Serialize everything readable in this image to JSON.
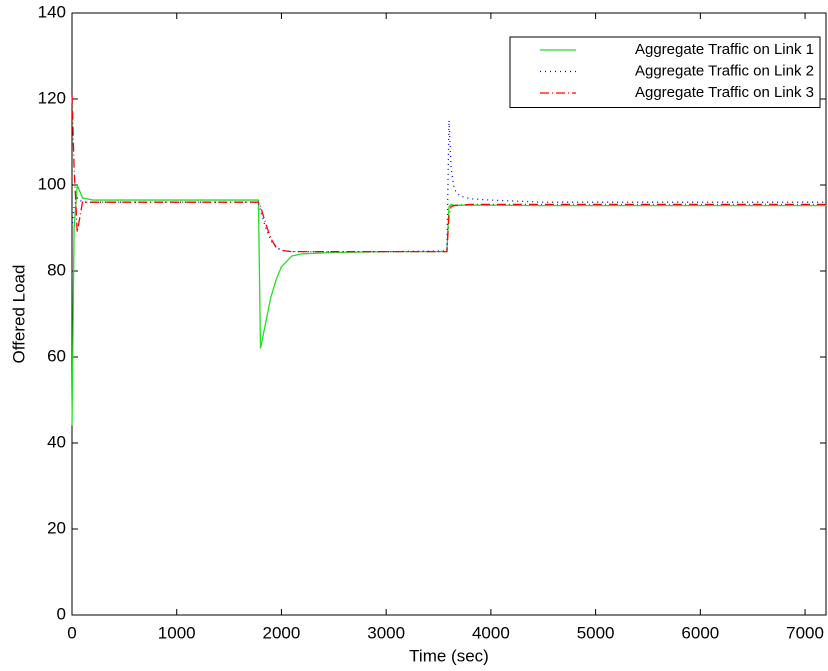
{
  "chart_data": {
    "type": "line",
    "xlabel": "Time (sec)",
    "ylabel": "Offered Load",
    "x": [
      0,
      20,
      50,
      100,
      200,
      500,
      1000,
      1500,
      1780,
      1800,
      1850,
      1900,
      1950,
      2000,
      2100,
      2200,
      2500,
      3000,
      3580,
      3600,
      3620,
      3650,
      3700,
      3800,
      4000,
      4500,
      5000,
      6000,
      7000,
      7200
    ],
    "series": [
      {
        "name": "Aggregate Traffic on Link 1",
        "color": "#22e022",
        "linestyle": "solid",
        "values": [
          44,
          90,
          100,
          97,
          96.5,
          96.5,
          96.5,
          96.5,
          96.5,
          62,
          68,
          74,
          78,
          81,
          83.5,
          84,
          84.3,
          84.5,
          84.5,
          95,
          95.5,
          95.3,
          95.3,
          95.3,
          95.3,
          95.2,
          95.2,
          95.2,
          95.2,
          95.2
        ]
      },
      {
        "name": "Aggregate Traffic on Link 2",
        "color": "#0000ff",
        "linestyle": "dotted",
        "values": [
          90,
          95,
          97,
          96,
          96,
          96,
          96,
          96,
          96,
          94,
          90,
          87,
          85.5,
          84.8,
          84.5,
          84.5,
          84.5,
          84.5,
          84.7,
          115,
          104,
          99,
          97.5,
          96.8,
          96.5,
          96,
          96,
          96,
          96,
          96
        ]
      },
      {
        "name": "Aggregate Traffic on Link 3",
        "color": "#ff0000",
        "linestyle": "dashdot",
        "values": [
          121,
          104,
          89,
          96,
          96,
          96,
          96,
          96,
          96,
          95,
          91,
          87.5,
          85.5,
          84.8,
          84.5,
          84.5,
          84.5,
          84.5,
          84.5,
          93,
          95,
          95.2,
          95.3,
          95.5,
          95.5,
          95.5,
          95.5,
          95.5,
          95.5,
          95.5
        ]
      }
    ],
    "xlim": [
      0,
      7200
    ],
    "xticks": [
      0,
      1000,
      2000,
      3000,
      4000,
      5000,
      6000,
      7000
    ],
    "ylim": [
      0,
      140
    ],
    "yticks": [
      0,
      20,
      40,
      60,
      80,
      100,
      120,
      140
    ],
    "grid": false,
    "legend": "upper-right"
  }
}
